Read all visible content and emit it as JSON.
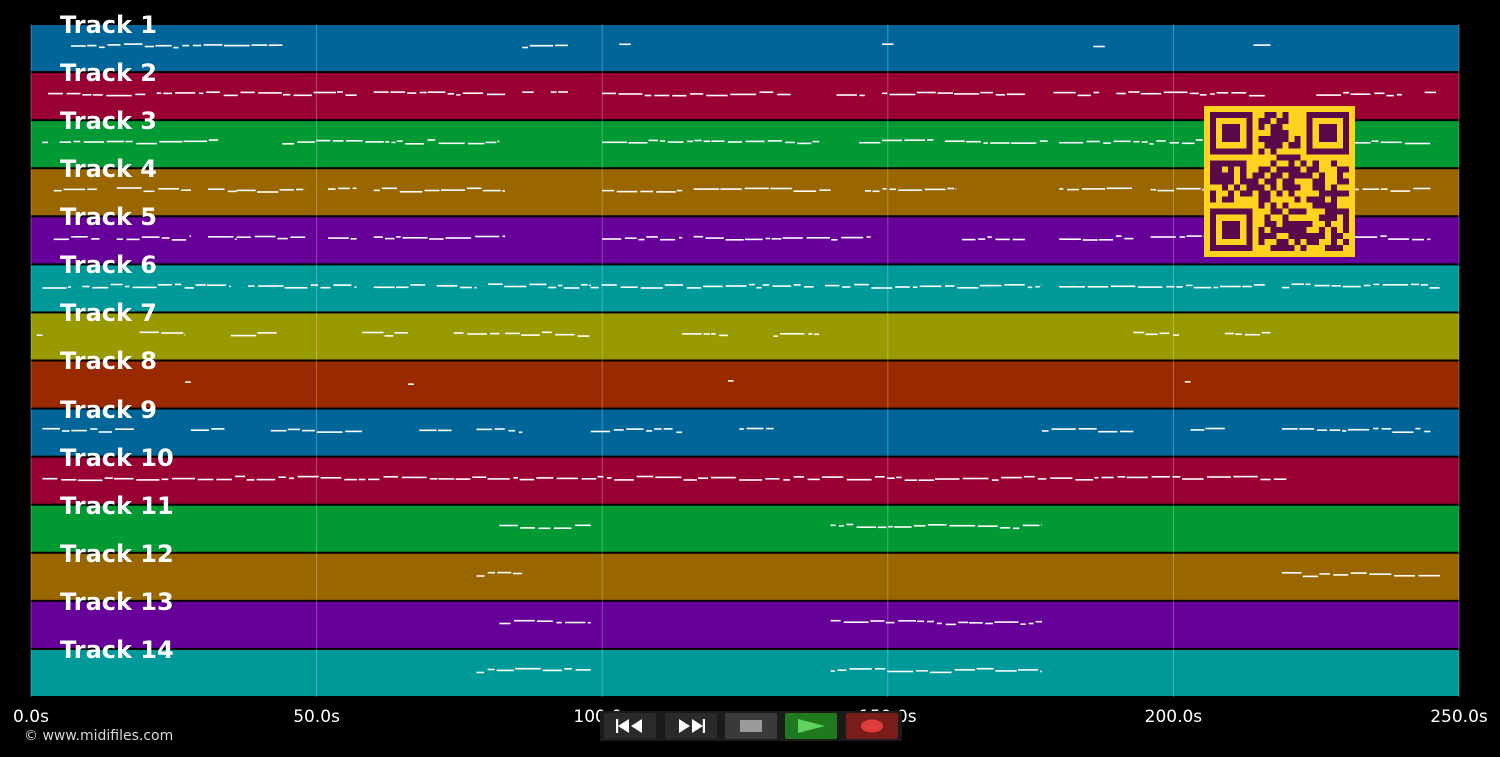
{
  "tracks": [
    {
      "label": "Track 1",
      "color": "#006699"
    },
    {
      "label": "Track 2",
      "color": "#990033"
    },
    {
      "label": "Track 3",
      "color": "#009933"
    },
    {
      "label": "Track 4",
      "color": "#996600"
    },
    {
      "label": "Track 5",
      "color": "#660099"
    },
    {
      "label": "Track 6",
      "color": "#009999"
    },
    {
      "label": "Track 7",
      "color": "#999900"
    },
    {
      "label": "Track 8",
      "color": "#992900"
    },
    {
      "label": "Track 9",
      "color": "#006699"
    },
    {
      "label": "Track 10",
      "color": "#990033"
    },
    {
      "label": "Track 11",
      "color": "#009933"
    },
    {
      "label": "Track 12",
      "color": "#996600"
    },
    {
      "label": "Track 13",
      "color": "#660099"
    },
    {
      "label": "Track 14",
      "color": "#009999"
    }
  ],
  "timeline": {
    "min_seconds": 0,
    "max_seconds": 250,
    "ticks": [
      {
        "value": 0,
        "label": "0.0s"
      },
      {
        "value": 50,
        "label": "50.0s"
      },
      {
        "value": 100,
        "label": "100.0s"
      },
      {
        "value": 150,
        "label": "150.0s"
      },
      {
        "value": 200,
        "label": "200.0s"
      },
      {
        "value": 250,
        "label": "250.0s"
      }
    ]
  },
  "copyright": "© www.midifiles.com",
  "controls": {
    "rewind_icon": "rewind-icon",
    "fast_forward_icon": "fast-forward-icon",
    "stop_icon": "stop-icon",
    "play_icon": "play-icon",
    "record_icon": "record-icon",
    "play_color": "#1f7a1f",
    "record_color": "#7a1c1c"
  },
  "qr_colors": {
    "background": "#ffd21f",
    "modules": "#5a0a4a"
  },
  "note_segments": [
    [
      [
        7,
        44
      ],
      [
        86,
        94
      ],
      [
        103,
        105
      ],
      [
        149,
        151
      ],
      [
        186,
        188
      ],
      [
        214,
        217
      ]
    ],
    [
      [
        3,
        20
      ],
      [
        22,
        57
      ],
      [
        60,
        83
      ],
      [
        86,
        88
      ],
      [
        91,
        94
      ],
      [
        100,
        133
      ],
      [
        141,
        146
      ],
      [
        149,
        174
      ],
      [
        179,
        187
      ],
      [
        190,
        216
      ],
      [
        225,
        240
      ],
      [
        244,
        246
      ]
    ],
    [
      [
        2,
        3
      ],
      [
        5,
        33
      ],
      [
        44,
        82
      ],
      [
        100,
        138
      ],
      [
        145,
        158
      ],
      [
        160,
        178
      ],
      [
        180,
        216
      ],
      [
        220,
        245
      ]
    ],
    [
      [
        4,
        12
      ],
      [
        15,
        28
      ],
      [
        31,
        36
      ],
      [
        36,
        48
      ],
      [
        52,
        57
      ],
      [
        60,
        83
      ],
      [
        100,
        114
      ],
      [
        116,
        140
      ],
      [
        146,
        162
      ],
      [
        180,
        193
      ],
      [
        196,
        216
      ],
      [
        222,
        245
      ]
    ],
    [
      [
        4,
        12
      ],
      [
        15,
        28
      ],
      [
        31,
        36
      ],
      [
        36,
        48
      ],
      [
        52,
        57
      ],
      [
        60,
        83
      ],
      [
        100,
        114
      ],
      [
        116,
        147
      ],
      [
        163,
        174
      ],
      [
        180,
        193
      ],
      [
        196,
        216
      ],
      [
        222,
        245
      ]
    ],
    [
      [
        2,
        7
      ],
      [
        9,
        35
      ],
      [
        38,
        57
      ],
      [
        60,
        69
      ],
      [
        71,
        78
      ],
      [
        80,
        98
      ],
      [
        98,
        137
      ],
      [
        139,
        177
      ],
      [
        180,
        216
      ],
      [
        219,
        247
      ]
    ],
    [
      [
        1,
        2
      ],
      [
        19,
        27
      ],
      [
        35,
        43
      ],
      [
        58,
        66
      ],
      [
        74,
        82
      ],
      [
        83,
        98
      ],
      [
        114,
        122
      ],
      [
        130,
        138
      ],
      [
        193,
        201
      ],
      [
        209,
        217
      ]
    ],
    [
      [
        27,
        28
      ],
      [
        66,
        67
      ],
      [
        122,
        123
      ],
      [
        202,
        203
      ]
    ],
    [
      [
        2,
        18
      ],
      [
        28,
        34
      ],
      [
        42,
        58
      ],
      [
        68,
        74
      ],
      [
        78,
        86
      ],
      [
        98,
        114
      ],
      [
        124,
        130
      ],
      [
        177,
        193
      ],
      [
        203,
        209
      ],
      [
        219,
        245
      ]
    ],
    [
      [
        2,
        220
      ]
    ],
    [
      [
        82,
        98
      ],
      [
        140,
        177
      ]
    ],
    [
      [
        78,
        86
      ],
      [
        219,
        247
      ]
    ],
    [
      [
        82,
        98
      ],
      [
        140,
        177
      ]
    ],
    [
      [
        78,
        98
      ],
      [
        140,
        177
      ]
    ]
  ]
}
